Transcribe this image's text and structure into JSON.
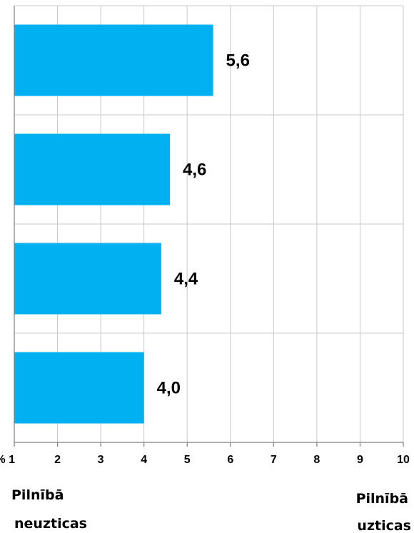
{
  "chart_data": {
    "type": "bar",
    "orientation": "horizontal",
    "values": [
      5.6,
      4.6,
      4.4,
      4.0
    ],
    "value_labels": [
      "5,6",
      "4,6",
      "4,4",
      "4,0"
    ],
    "xlim": [
      1,
      10
    ],
    "x_ticks": [
      1,
      2,
      3,
      4,
      5,
      6,
      7,
      8,
      9,
      10
    ],
    "x_tick_labels": [
      "% 1",
      "2",
      "3",
      "4",
      "5",
      "6",
      "7",
      "8",
      "9",
      "10"
    ],
    "grid": true,
    "legend": false,
    "bar_color": "#00B0F0",
    "grid_color": "#C8C8C8",
    "axis_color": "#808080",
    "axis_end_labels": {
      "left": [
        "Pilnībā",
        "neuzticas"
      ],
      "right": [
        "Pilnībā",
        "uzticas"
      ]
    }
  }
}
